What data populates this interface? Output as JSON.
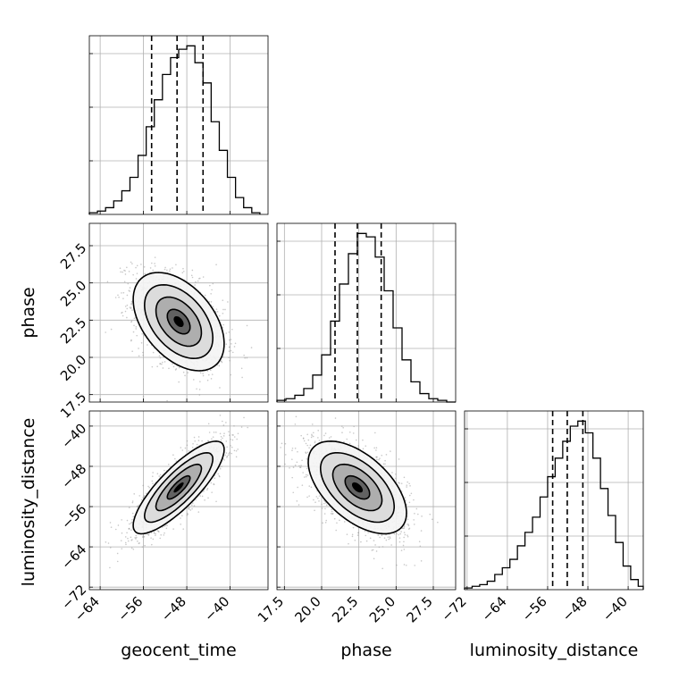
{
  "chart_data": {
    "type": "corner",
    "parameters": [
      "geocent_time",
      "phase",
      "luminosity_distance"
    ],
    "axis_labels": {
      "x": [
        "geocent_time",
        "phase",
        "luminosity_distance"
      ],
      "y": [
        "phase",
        "luminosity_distance"
      ]
    },
    "ranges": {
      "geocent_time": [
        -66,
        -33
      ],
      "phase": [
        17.0,
        29.0
      ],
      "luminosity_distance": [
        -72.5,
        -37.0
      ]
    },
    "ticks": {
      "geocent_time": [
        -64,
        -56,
        -48,
        -40
      ],
      "phase": [
        17.5,
        20.0,
        22.5,
        25.0,
        27.5
      ],
      "luminosity_distance": [
        -72,
        -64,
        -56,
        -48,
        -40
      ]
    },
    "tick_labels": {
      "geocent_time": [
        "−64",
        "−56",
        "−48",
        "−40"
      ],
      "phase": [
        "17.5",
        "20.0",
        "22.5",
        "25.0",
        "27.5"
      ],
      "luminosity_distance": [
        "−72",
        "−64",
        "−56",
        "−48",
        "−40"
      ]
    },
    "quantile_lines": {
      "geocent_time": [
        -54.5,
        -49.8,
        -45.0
      ],
      "phase": [
        20.9,
        22.4,
        24.0
      ],
      "luminosity_distance": [
        -55.0,
        -52.1,
        -49.0
      ]
    },
    "histograms": {
      "geocent_time": {
        "bin_edges": [
          -66,
          -64.5,
          -63,
          -61.5,
          -60,
          -58.5,
          -57,
          -55.5,
          -54,
          -52.5,
          -51,
          -49.5,
          -48,
          -46.5,
          -45,
          -43.5,
          -42,
          -40.5,
          -39,
          -37.5,
          -36,
          -34.5
        ],
        "counts": [
          0.01,
          0.02,
          0.04,
          0.08,
          0.14,
          0.22,
          0.35,
          0.52,
          0.68,
          0.83,
          0.93,
          0.98,
          1.0,
          0.9,
          0.78,
          0.55,
          0.38,
          0.22,
          0.1,
          0.04,
          0.01
        ]
      },
      "phase": {
        "bin_edges": [
          17.0,
          17.6,
          18.2,
          18.8,
          19.4,
          20.0,
          20.6,
          21.2,
          21.8,
          22.4,
          23.0,
          23.6,
          24.2,
          24.8,
          25.4,
          26.0,
          26.6,
          27.2,
          27.8,
          28.4,
          29.0
        ],
        "counts": [
          0.01,
          0.02,
          0.04,
          0.08,
          0.16,
          0.28,
          0.48,
          0.7,
          0.88,
          1.0,
          0.98,
          0.86,
          0.66,
          0.44,
          0.25,
          0.12,
          0.05,
          0.02,
          0.01,
          0.0
        ]
      },
      "luminosity_distance": {
        "bin_edges": [
          -72.5,
          -71.0,
          -69.5,
          -68.0,
          -66.5,
          -65.0,
          -63.5,
          -62.0,
          -60.5,
          -59.0,
          -57.5,
          -56.0,
          -54.5,
          -53.0,
          -51.5,
          -50.0,
          -48.5,
          -47.0,
          -45.5,
          -44.0,
          -42.5,
          -41.0,
          -39.5,
          -38.0,
          -37.0
        ],
        "counts": [
          0.01,
          0.02,
          0.03,
          0.05,
          0.09,
          0.13,
          0.18,
          0.26,
          0.34,
          0.43,
          0.55,
          0.67,
          0.78,
          0.88,
          0.97,
          1.0,
          0.93,
          0.78,
          0.6,
          0.44,
          0.28,
          0.14,
          0.06,
          0.02
        ]
      }
    },
    "pairs": [
      {
        "x": "geocent_time",
        "y": "phase",
        "mean": [
          -49.5,
          22.4
        ],
        "sd": [
          4.2,
          1.65
        ],
        "corr": -0.45
      },
      {
        "x": "geocent_time",
        "y": "luminosity_distance",
        "mean": [
          -49.5,
          -52.2
        ],
        "sd": [
          4.2,
          4.6
        ],
        "corr": 0.82
      },
      {
        "x": "phase",
        "y": "luminosity_distance",
        "mean": [
          22.4,
          -52.2
        ],
        "sd": [
          1.65,
          4.6
        ],
        "corr": -0.55
      }
    ],
    "contour_levels_sigma": [
      0.5,
      1.0,
      1.5,
      2.0
    ],
    "grid": true
  }
}
